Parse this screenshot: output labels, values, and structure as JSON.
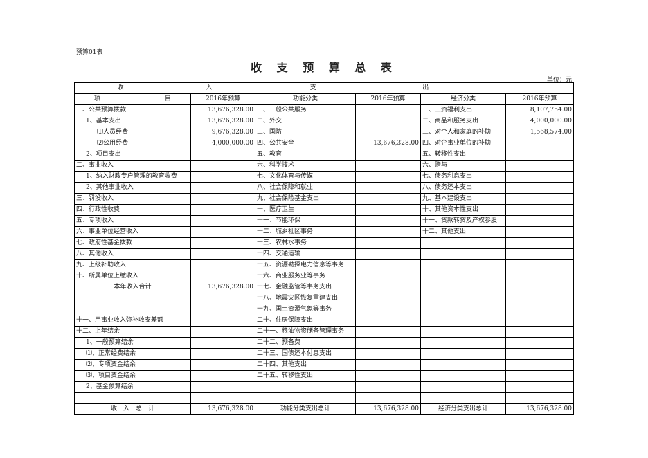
{
  "form_no": "预算01表",
  "title": "收 支 预 算 总 表",
  "unit": "单位：元",
  "header": {
    "income_left": "收",
    "income_right": "入",
    "expense_left": "支",
    "expense_right": "出",
    "item_left": "项",
    "item_right": "目",
    "budget_year": "2016年预算",
    "func_class": "功能分类",
    "func_budget": "2016年预算",
    "econ_class": "经济分类",
    "econ_budget": "2016年预算"
  },
  "rows": [
    {
      "income_item": "一、公共预算拨款",
      "income_amount": "13,676,328.00",
      "func_item": "一、一般公共服务",
      "func_amount": "",
      "econ_item": "一、工资福利支出",
      "econ_amount": "8,107,754.00"
    },
    {
      "income_item": "1、基本支出",
      "indent": 1,
      "income_amount": "13,676,328.00",
      "func_item": "二、外交",
      "func_amount": "",
      "econ_item": "二、商品和服务支出",
      "econ_amount": "4,000,000.00"
    },
    {
      "income_item": "⑴人员经费",
      "indent": 2,
      "income_amount": "9,676,328.00",
      "func_item": "三、国防",
      "func_amount": "",
      "econ_item": "三、对个人和家庭的补助",
      "econ_amount": "1,568,574.00"
    },
    {
      "income_item": "⑵公用经费",
      "indent": 2,
      "income_amount": "4,000,000.00",
      "func_item": "四、公共安全",
      "func_amount": "13,676,328.00",
      "econ_item": "四、对企事业单位的补助",
      "econ_amount": ""
    },
    {
      "income_item": "2、项目支出",
      "indent": 1,
      "income_amount": "",
      "func_item": "五、教育",
      "func_amount": "",
      "econ_item": "五、转移性支出",
      "econ_amount": ""
    },
    {
      "income_item": "二、事业收入",
      "income_amount": "",
      "func_item": "六、科学技术",
      "func_amount": "",
      "econ_item": "六、赠与",
      "econ_amount": ""
    },
    {
      "income_item": "1、纳入财政专户管理的教育收费",
      "indent": 1,
      "income_amount": "",
      "func_item": "七、文化体育与传媒",
      "func_amount": "",
      "econ_item": "七、债务利息支出",
      "econ_amount": ""
    },
    {
      "income_item": "2、其他事业收入",
      "indent": 1,
      "income_amount": "",
      "func_item": "八、社会保障和就业",
      "func_amount": "",
      "econ_item": "八、债务还本支出",
      "econ_amount": ""
    },
    {
      "income_item": "三、罚没收入",
      "income_amount": "",
      "func_item": "九、社会保险基金支出",
      "func_amount": "",
      "econ_item": "九、基本建设支出",
      "econ_amount": ""
    },
    {
      "income_item": "四、行政性收费",
      "income_amount": "",
      "func_item": "十、医疗卫生",
      "func_amount": "",
      "econ_item": "十、其他资本性支出",
      "econ_amount": ""
    },
    {
      "income_item": "五、专项收入",
      "income_amount": "",
      "func_item": "十一、节能环保",
      "func_amount": "",
      "econ_item": "十一、贷款转贷及产权参股",
      "econ_amount": ""
    },
    {
      "income_item": "六、事业单位经营收入",
      "income_amount": "",
      "func_item": "十二、城乡社区事务",
      "func_amount": "",
      "econ_item": "十二、其他支出",
      "econ_amount": ""
    },
    {
      "income_item": "七、政府性基金拨款",
      "income_amount": "",
      "func_item": "十三、农林水事务",
      "func_amount": "",
      "econ_item": "",
      "econ_amount": ""
    },
    {
      "income_item": "八、其他收入",
      "income_amount": "",
      "func_item": "十四、交通运输",
      "func_amount": "",
      "econ_item": "",
      "econ_amount": ""
    },
    {
      "income_item": "九、上级补助收入",
      "income_amount": "",
      "func_item": "十五、资源勘探电力信息等事务",
      "func_amount": "",
      "econ_item": "",
      "econ_amount": ""
    },
    {
      "income_item": "十、所属单位上缴收入",
      "income_amount": "",
      "func_item": "十六、商业服务业等事务",
      "func_amount": "",
      "econ_item": "",
      "econ_amount": ""
    },
    {
      "income_item": "本年收入合计",
      "center": true,
      "income_amount": "13,676,328.00",
      "func_item": "十七、金融监管等事务支出",
      "func_amount": "",
      "econ_item": "",
      "econ_amount": ""
    },
    {
      "income_item": "",
      "income_amount": "",
      "func_item": "十八、地震灾区恢复重建支出",
      "func_amount": "",
      "econ_item": "",
      "econ_amount": ""
    },
    {
      "income_item": "",
      "income_amount": "",
      "func_item": "十九、国土资源气象等事务",
      "func_amount": "",
      "econ_item": "",
      "econ_amount": ""
    },
    {
      "income_item": "十一、用事业收入弥补收支差额",
      "income_amount": "",
      "func_item": "二十、住房保障支出",
      "func_amount": "",
      "econ_item": "",
      "econ_amount": ""
    },
    {
      "income_item": "十二、上年结余",
      "income_amount": "",
      "func_item": "二十一、粮油物资储备管理事务",
      "func_amount": "",
      "econ_item": "",
      "econ_amount": ""
    },
    {
      "income_item": "1、一般预算结余",
      "indent": 1,
      "income_amount": "",
      "func_item": "二十二、预备费",
      "func_amount": "",
      "econ_item": "",
      "econ_amount": ""
    },
    {
      "income_item": "⑴、正常经费结余",
      "indent": 1,
      "income_amount": "",
      "func_item": "二十三、国债还本付息支出",
      "func_amount": "",
      "econ_item": "",
      "econ_amount": ""
    },
    {
      "income_item": "⑵、专项资金结余",
      "indent": 1,
      "income_amount": "",
      "func_item": "二十四、其他支出",
      "func_amount": "",
      "econ_item": "",
      "econ_amount": ""
    },
    {
      "income_item": "⑶、项目资金结余",
      "indent": 1,
      "income_amount": "",
      "func_item": "二十五、转移性支出",
      "func_amount": "",
      "econ_item": "",
      "econ_amount": ""
    },
    {
      "income_item": "2、基金预算结余",
      "indent": 1,
      "income_amount": "",
      "func_item": "",
      "func_amount": "",
      "econ_item": "",
      "econ_amount": ""
    },
    {
      "income_item": "",
      "income_amount": "",
      "func_item": "",
      "func_amount": "",
      "econ_item": "",
      "econ_amount": ""
    }
  ],
  "totals": {
    "income_label": "收　入　总　计",
    "income_total": "13,676,328.00",
    "func_label": "功能分类支出总计",
    "func_total": "13,676,328.00",
    "econ_label": "经济分类支出总计",
    "econ_total": "13,676,328.00"
  }
}
